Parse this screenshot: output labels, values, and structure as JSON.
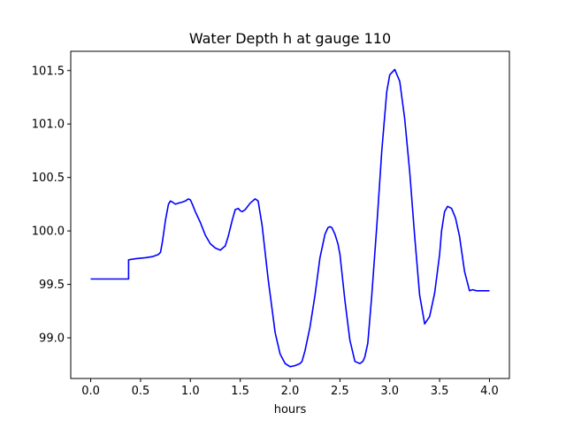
{
  "chart_data": {
    "type": "line",
    "title": "Water Depth h at gauge 110",
    "xlabel": "hours",
    "ylabel": "",
    "xlim": [
      -0.2,
      4.2
    ],
    "ylim": [
      98.62,
      101.68
    ],
    "xticks": [
      0.0,
      0.5,
      1.0,
      1.5,
      2.0,
      2.5,
      3.0,
      3.5,
      4.0
    ],
    "xtick_labels": [
      "0.0",
      "0.5",
      "1.0",
      "1.5",
      "2.0",
      "2.5",
      "3.0",
      "3.5",
      "4.0"
    ],
    "yticks": [
      99.0,
      99.5,
      100.0,
      100.5,
      101.0,
      101.5
    ],
    "ytick_labels": [
      "99.0",
      "99.5",
      "100.0",
      "100.5",
      "101.0",
      "101.5"
    ],
    "grid": false,
    "legend": "none",
    "series": [
      {
        "color": "#0000ff",
        "x": [
          0.0,
          0.1,
          0.2,
          0.3,
          0.38,
          0.38,
          0.45,
          0.55,
          0.62,
          0.68,
          0.7,
          0.72,
          0.75,
          0.78,
          0.8,
          0.82,
          0.85,
          0.88,
          0.92,
          0.95,
          0.98,
          1.0,
          1.02,
          1.05,
          1.1,
          1.15,
          1.2,
          1.25,
          1.3,
          1.35,
          1.38,
          1.42,
          1.45,
          1.48,
          1.5,
          1.52,
          1.55,
          1.6,
          1.65,
          1.68,
          1.72,
          1.78,
          1.85,
          1.9,
          1.95,
          2.0,
          2.05,
          2.1,
          2.12,
          2.15,
          2.2,
          2.25,
          2.3,
          2.35,
          2.38,
          2.4,
          2.42,
          2.45,
          2.48,
          2.5,
          2.55,
          2.6,
          2.65,
          2.7,
          2.73,
          2.75,
          2.78,
          2.82,
          2.87,
          2.92,
          2.97,
          3.0,
          3.05,
          3.1,
          3.15,
          3.2,
          3.25,
          3.3,
          3.35,
          3.4,
          3.45,
          3.5,
          3.52,
          3.55,
          3.58,
          3.62,
          3.66,
          3.7,
          3.75,
          3.8,
          3.83,
          3.87,
          3.92,
          3.96,
          4.0
        ],
        "y": [
          99.55,
          99.55,
          99.55,
          99.55,
          99.55,
          99.73,
          99.74,
          99.75,
          99.76,
          99.78,
          99.8,
          99.9,
          100.1,
          100.25,
          100.28,
          100.27,
          100.25,
          100.26,
          100.27,
          100.28,
          100.3,
          100.29,
          100.25,
          100.18,
          100.08,
          99.96,
          99.88,
          99.84,
          99.82,
          99.86,
          99.95,
          100.1,
          100.2,
          100.21,
          100.19,
          100.18,
          100.2,
          100.26,
          100.3,
          100.28,
          100.05,
          99.55,
          99.05,
          98.85,
          98.76,
          98.73,
          98.74,
          98.76,
          98.78,
          98.88,
          99.1,
          99.4,
          99.75,
          99.97,
          100.03,
          100.04,
          100.03,
          99.97,
          99.88,
          99.78,
          99.35,
          98.98,
          98.78,
          98.76,
          98.78,
          98.82,
          98.95,
          99.4,
          100.05,
          100.75,
          101.3,
          101.46,
          101.51,
          101.4,
          101.05,
          100.55,
          99.95,
          99.4,
          99.13,
          99.2,
          99.42,
          99.78,
          100.0,
          100.18,
          100.23,
          100.21,
          100.12,
          99.95,
          99.62,
          99.44,
          99.45,
          99.44,
          99.44,
          99.44,
          99.44
        ]
      }
    ]
  }
}
